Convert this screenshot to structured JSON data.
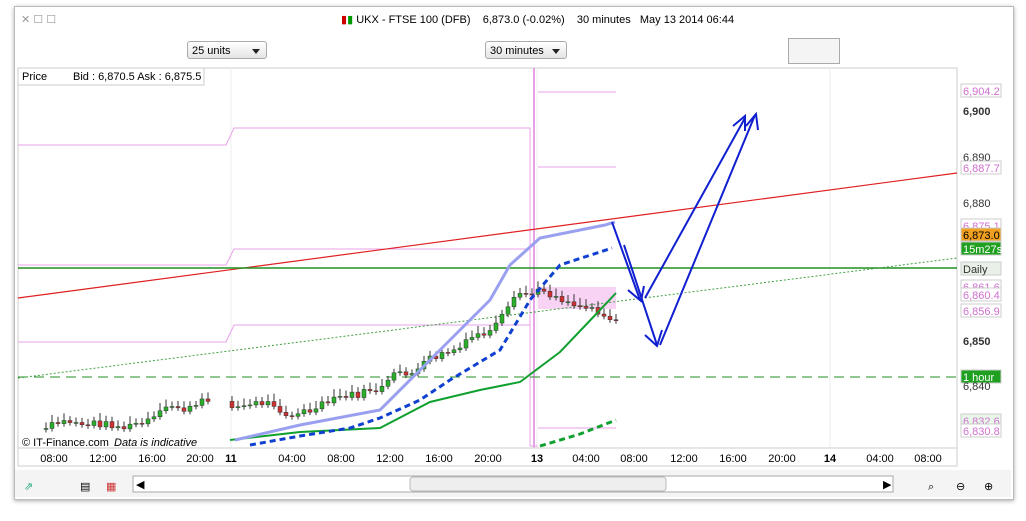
{
  "header": {
    "symbol": "UKX - FTSE 100 (DFB)",
    "quote": "6,873.0 (-0.02%)",
    "interval": "30 minutes",
    "datetime": "May 13 2014 06:44"
  },
  "toolbar": {
    "units": "25 units",
    "interval": "30 minutes"
  },
  "chart": {
    "price_label": "Price",
    "bid_ask": "Bid : 6,870.5 Ask : 6,875.5",
    "price_axis": [
      "6,904.2",
      "6,900",
      "6,890",
      "6,887.7",
      "6,880",
      "6,875.1",
      "6,873.0",
      "15m27s",
      "Daily",
      "6,861.6",
      "6,860.4",
      "6,856.9",
      "6,850",
      "1 hour",
      "6,840",
      "6,832.6",
      "6,830.8"
    ],
    "time_axis": [
      "08:00",
      "12:00",
      "16:00",
      "20:00",
      "11",
      "04:00",
      "08:00",
      "12:00",
      "16:00",
      "20:00",
      "13",
      "04:00",
      "08:00",
      "12:00",
      "16:00",
      "20:00",
      "14",
      "04:00",
      "08:00"
    ],
    "copyright": "© IT-Finance.com",
    "disclaimer": "Data is indicative"
  }
}
